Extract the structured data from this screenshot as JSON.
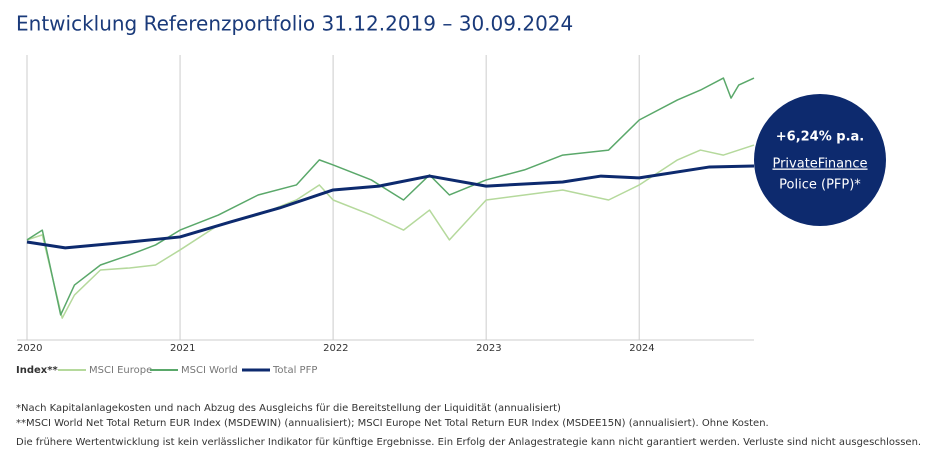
{
  "chart_data": {
    "type": "line",
    "title": "Entwicklung Referenzportfolio 31.12.2019 – 30.09.2024",
    "xlim": [
      2020,
      2024.75
    ],
    "xticks": [
      2020,
      2021,
      2022,
      2023,
      2024
    ],
    "ylim": [
      57,
      182
    ],
    "grid": true,
    "legend_title": "Index**",
    "series": [
      {
        "name": "MSCI Europe",
        "color": "#b5d99c",
        "x": [
          2020,
          2020.1,
          2020.23,
          2020.31,
          2020.48,
          2020.67,
          2020.84,
          2021,
          2021.25,
          2021.51,
          2021.76,
          2021.91,
          2022,
          2022.25,
          2022.46,
          2022.63,
          2022.76,
          2023,
          2023.25,
          2023.5,
          2023.8,
          2024,
          2024.25,
          2024.4,
          2024.55,
          2024.75
        ],
        "values": [
          100.9,
          103.1,
          66.6,
          76.7,
          87.7,
          88.6,
          89.9,
          96.5,
          107.4,
          111.8,
          118.4,
          125,
          118.4,
          111.8,
          105.2,
          114,
          100.9,
          118.4,
          120.6,
          122.8,
          118.4,
          125,
          136,
          140.3,
          138.1,
          142.5
        ]
      },
      {
        "name": "MSCI World",
        "color": "#5aa86a",
        "x": [
          2020,
          2020.1,
          2020.22,
          2020.31,
          2020.48,
          2020.67,
          2020.84,
          2021,
          2021.25,
          2021.51,
          2021.76,
          2021.91,
          2022,
          2022.25,
          2022.46,
          2022.63,
          2022.76,
          2023,
          2023.25,
          2023.5,
          2023.8,
          2024,
          2024.25,
          2024.4,
          2024.55,
          2024.6,
          2024.65,
          2024.75
        ],
        "values": [
          100.9,
          105.2,
          68,
          81.1,
          89.9,
          94.3,
          98.7,
          105.2,
          111.8,
          120.6,
          125,
          136,
          133.8,
          127.2,
          118.4,
          129.4,
          120.6,
          127.2,
          131.6,
          138.1,
          140.3,
          153.5,
          162.3,
          166.6,
          171.9,
          163.1,
          168.8,
          171.9
        ]
      },
      {
        "name": "Total PFP",
        "color": "#0d2a6e",
        "x": [
          2020,
          2020.25,
          2020.67,
          2021,
          2021.33,
          2021.65,
          2022,
          2022.3,
          2022.63,
          2023,
          2023.5,
          2023.75,
          2024,
          2024.46,
          2024.75
        ],
        "values": [
          100,
          97.4,
          100,
          102.2,
          108.8,
          114.9,
          122.8,
          124.5,
          128.9,
          124.5,
          126.3,
          128.9,
          128.1,
          132.9,
          133.3
        ]
      }
    ],
    "annotation": [
      "+6,24% p.a.",
      "PrivateFinance",
      "Police (PFP)*"
    ],
    "notes": [
      "*Nach Kapitalanlagekosten und nach Abzug des Ausgleichs für die Bereitstellung der Liquidität (annualisiert)",
      "**MSCI World Net Total Return EUR Index (MSDEWIN) (annualisiert); MSCI Europe Net Total Return EUR Index (MSDEE15N) (annualisiert). Ohne Kosten.",
      "Die frühere Wertentwicklung ist kein verlässlicher Indikator für künftige Ergebnisse. Ein Erfolg der Anlagestrategie kann nicht garantiert werden. Verluste sind nicht ausgeschlossen."
    ]
  }
}
